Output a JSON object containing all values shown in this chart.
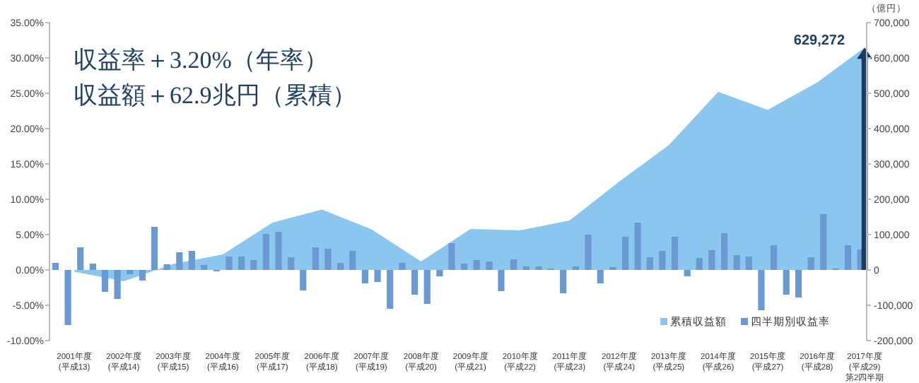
{
  "chart_data": {
    "type": "bar",
    "annotations": [
      "収益率＋3.20%（年率）",
      "収益額＋62.9兆円（累積）"
    ],
    "y2label": "（億円）",
    "xlim": [
      "2001-04-01",
      "2017-09-30"
    ],
    "xticks": [
      {
        "value": "2001-10-01",
        "label": "2001年度\n(平成13)"
      },
      {
        "value": "2002-10-01",
        "label": "2002年度\n(平成14)"
      },
      {
        "value": "2003-10-01",
        "label": "2003年度\n(平成15)"
      },
      {
        "value": "2004-10-01",
        "label": "2004年度\n(平成16)"
      },
      {
        "value": "2005-10-01",
        "label": "2005年度\n(平成17)"
      },
      {
        "value": "2006-10-01",
        "label": "2006年度\n(平成18)"
      },
      {
        "value": "2007-10-01",
        "label": "2007年度\n(平成19)"
      },
      {
        "value": "2008-10-01",
        "label": "2008年度\n(平成20)"
      },
      {
        "value": "2009-10-01",
        "label": "2009年度\n(平成21)"
      },
      {
        "value": "2010-10-01",
        "label": "2010年度\n(平成22)"
      },
      {
        "value": "2011-10-01",
        "label": "2011年度\n(平成23)"
      },
      {
        "value": "2012-10-01",
        "label": "2012年度\n(平成24)"
      },
      {
        "value": "2013-10-01",
        "label": "2013年度\n(平成25)"
      },
      {
        "value": "2014-10-01",
        "label": "2014年度\n(平成26)"
      },
      {
        "value": "2015-10-01",
        "label": "2015年度\n(平成27)"
      },
      {
        "value": "2016-10-01",
        "label": "2016年度\n(平成28)"
      },
      {
        "value": "2017-09-15",
        "label": "2017年度\n(平成29)\n第2四半期"
      }
    ],
    "ylim": [
      -10,
      35
    ],
    "yticks": [
      {
        "value": -10,
        "label": "-10.00%"
      },
      {
        "value": -5,
        "label": "-5.00%"
      },
      {
        "value": 0,
        "label": "0.00%"
      },
      {
        "value": 5,
        "label": "5.00%"
      },
      {
        "value": 10,
        "label": "10.00%"
      },
      {
        "value": 15,
        "label": "15.00%"
      },
      {
        "value": 20,
        "label": "20.00%"
      },
      {
        "value": 25,
        "label": "25.00%"
      },
      {
        "value": 30,
        "label": "30.00%"
      },
      {
        "value": 35,
        "label": "35.00%"
      }
    ],
    "y2lim": [
      -200000,
      700000
    ],
    "y2ticks": [
      {
        "value": -200000,
        "label": "-200,000"
      },
      {
        "value": -100000,
        "label": "-100,000"
      },
      0,
      {
        "value": 100000,
        "label": "100,000"
      },
      {
        "value": 200000,
        "label": "200,000"
      },
      {
        "value": 300000,
        "label": "300,000"
      },
      {
        "value": 400000,
        "label": "400,000"
      },
      {
        "value": 500000,
        "label": "500,000"
      },
      {
        "value": 600000,
        "label": "600,000"
      },
      {
        "value": 700000,
        "label": "700,000"
      }
    ],
    "grid": false,
    "legend": "bottom right",
    "series": [
      {
        "name": "累積収益額",
        "type": "area",
        "axis": "y2",
        "color": "#8ac6ee",
        "x": [
          "2001-10-01",
          "2002-10-01",
          "2003-10-01",
          "2004-10-01",
          "2005-10-01",
          "2006-10-01",
          "2007-10-01",
          "2008-10-01",
          "2009-10-01",
          "2010-10-01",
          "2011-10-01",
          "2012-10-01",
          "2013-10-01",
          "2014-10-01",
          "2015-10-01",
          "2016-10-01",
          "2017-09-15"
        ],
        "values": [
          -5000,
          -32000,
          17000,
          44000,
          134000,
          171000,
          115000,
          24000,
          116000,
          112000,
          140000,
          250000,
          353000,
          504000,
          453000,
          531000,
          629272
        ],
        "value_labels": [
          null,
          null,
          null,
          null,
          null,
          null,
          null,
          null,
          null,
          null,
          null,
          null,
          null,
          null,
          null,
          null,
          "629,272"
        ]
      },
      {
        "name": "四半期別収益率",
        "axis": "y",
        "color": "#6b99d1",
        "x": [
          "2001-05-15",
          "2001-08-15",
          "2001-11-15",
          "2002-02-15",
          "2002-05-15",
          "2002-08-15",
          "2002-11-15",
          "2003-02-15",
          "2003-05-15",
          "2003-08-15",
          "2003-11-15",
          "2004-02-15",
          "2004-05-15",
          "2004-08-15",
          "2004-11-15",
          "2005-02-15",
          "2005-05-15",
          "2005-08-15",
          "2005-11-15",
          "2006-02-15",
          "2006-05-15",
          "2006-08-15",
          "2006-11-15",
          "2007-02-15",
          "2007-05-15",
          "2007-08-15",
          "2007-11-15",
          "2008-02-15",
          "2008-05-15",
          "2008-08-15",
          "2008-11-15",
          "2009-02-15",
          "2009-05-15",
          "2009-08-15",
          "2009-11-15",
          "2010-02-15",
          "2010-05-15",
          "2010-08-15",
          "2010-11-15",
          "2011-02-15",
          "2011-05-15",
          "2011-08-15",
          "2011-11-15",
          "2012-02-15",
          "2012-05-15",
          "2012-08-15",
          "2012-11-15",
          "2013-02-15",
          "2013-05-15",
          "2013-08-15",
          "2013-11-15",
          "2014-02-15",
          "2014-05-15",
          "2014-08-15",
          "2014-11-15",
          "2015-02-15",
          "2015-05-15",
          "2015-08-15",
          "2015-11-15",
          "2016-02-15",
          "2016-05-15",
          "2016-08-15",
          "2016-11-15",
          "2017-02-15",
          "2017-05-15",
          "2017-08-15"
        ],
        "values": [
          1.0,
          -7.8,
          3.2,
          0.9,
          -3.1,
          -4.1,
          -0.6,
          -1.5,
          6.1,
          0.8,
          2.5,
          2.7,
          0.7,
          -0.2,
          1.9,
          1.9,
          1.4,
          5.1,
          5.4,
          1.8,
          -2.9,
          3.2,
          3.0,
          1.0,
          2.7,
          -1.9,
          -1.7,
          -5.5,
          1.0,
          -3.5,
          -4.8,
          -0.9,
          3.8,
          0.9,
          1.4,
          1.2,
          -3.0,
          1.5,
          0.5,
          0.5,
          0.2,
          -3.3,
          0.5,
          5.0,
          -1.9,
          0.4,
          4.7,
          6.7,
          1.8,
          2.7,
          4.7,
          -0.9,
          1.7,
          2.8,
          5.2,
          2.1,
          1.9,
          -5.7,
          3.5,
          -3.5,
          -3.9,
          1.8,
          7.9,
          0.2,
          3.5,
          2.9
        ]
      }
    ]
  }
}
